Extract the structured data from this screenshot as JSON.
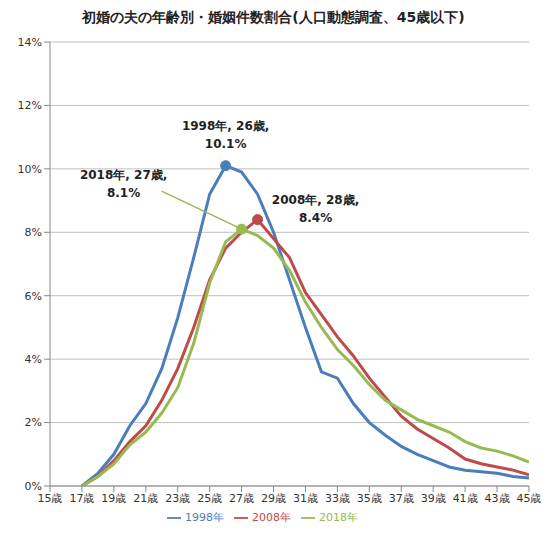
{
  "chart_data": {
    "type": "line",
    "title": "初婚の夫の年齢別・婚姻件数割合(人口動態調査、45歳以下)",
    "x": [
      17,
      18,
      19,
      20,
      21,
      22,
      23,
      24,
      25,
      26,
      27,
      28,
      29,
      30,
      31,
      32,
      33,
      34,
      35,
      36,
      37,
      38,
      39,
      40,
      41,
      42,
      43,
      44,
      45
    ],
    "series": [
      {
        "name": "1998年",
        "color": "#4a7ebb",
        "values": [
          0,
          0.4,
          1.0,
          1.9,
          2.6,
          3.7,
          5.3,
          7.2,
          9.2,
          10.1,
          9.9,
          9.2,
          8.0,
          6.5,
          5.0,
          3.6,
          3.4,
          2.6,
          2.0,
          1.6,
          1.25,
          1.0,
          0.8,
          0.6,
          0.5,
          0.45,
          0.4,
          0.3,
          0.25
        ]
      },
      {
        "name": "2008年",
        "color": "#be4b48",
        "values": [
          0,
          0.3,
          0.8,
          1.4,
          1.9,
          2.7,
          3.7,
          5.0,
          6.5,
          7.5,
          8.0,
          8.4,
          7.8,
          7.2,
          6.1,
          5.4,
          4.7,
          4.1,
          3.4,
          2.8,
          2.2,
          1.8,
          1.5,
          1.2,
          0.85,
          0.7,
          0.6,
          0.5,
          0.35
        ]
      },
      {
        "name": "2018年",
        "color": "#98b954",
        "values": [
          0,
          0.3,
          0.7,
          1.3,
          1.7,
          2.3,
          3.1,
          4.5,
          6.4,
          7.7,
          8.1,
          7.9,
          7.5,
          6.8,
          5.8,
          5.0,
          4.3,
          3.8,
          3.2,
          2.7,
          2.4,
          2.1,
          1.9,
          1.7,
          1.4,
          1.2,
          1.1,
          0.95,
          0.75
        ]
      }
    ],
    "xlim": [
      15,
      45
    ],
    "xticks": [
      {
        "value": 15,
        "label": "15歳"
      },
      {
        "value": 17,
        "label": "17歳"
      },
      {
        "value": 19,
        "label": "19歳"
      },
      {
        "value": 21,
        "label": "21歳"
      },
      {
        "value": 23,
        "label": "23歳"
      },
      {
        "value": 25,
        "label": "25歳"
      },
      {
        "value": 27,
        "label": "27歳"
      },
      {
        "value": 29,
        "label": "29歳"
      },
      {
        "value": 31,
        "label": "31歳"
      },
      {
        "value": 33,
        "label": "33歳"
      },
      {
        "value": 35,
        "label": "35歳"
      },
      {
        "value": 37,
        "label": "37歳"
      },
      {
        "value": 39,
        "label": "39歳"
      },
      {
        "value": 41,
        "label": "41歳"
      },
      {
        "value": 43,
        "label": "43歳"
      },
      {
        "value": 45,
        "label": "45歳"
      }
    ],
    "ylim": [
      0,
      14
    ],
    "yticks": [
      {
        "value": 0,
        "label": "0%"
      },
      {
        "value": 2,
        "label": "2%"
      },
      {
        "value": 4,
        "label": "4%"
      },
      {
        "value": 6,
        "label": "6%"
      },
      {
        "value": 8,
        "label": "8%"
      },
      {
        "value": 10,
        "label": "10%"
      },
      {
        "value": 12,
        "label": "12%"
      },
      {
        "value": 14,
        "label": "14%"
      }
    ],
    "grid": true,
    "legend": "bottom",
    "annotations": [
      {
        "text": [
          "1998年, 26歳,",
          "10.1%"
        ],
        "x": 26,
        "y": 10.1,
        "series": "1998年"
      },
      {
        "text": [
          "2008年, 28歳,",
          "8.4%"
        ],
        "x": 28,
        "y": 8.4,
        "series": "2008年"
      },
      {
        "text": [
          "2018年, 27歳,",
          "8.1%"
        ],
        "x": 27,
        "y": 8.1,
        "series": "2018年"
      }
    ]
  }
}
